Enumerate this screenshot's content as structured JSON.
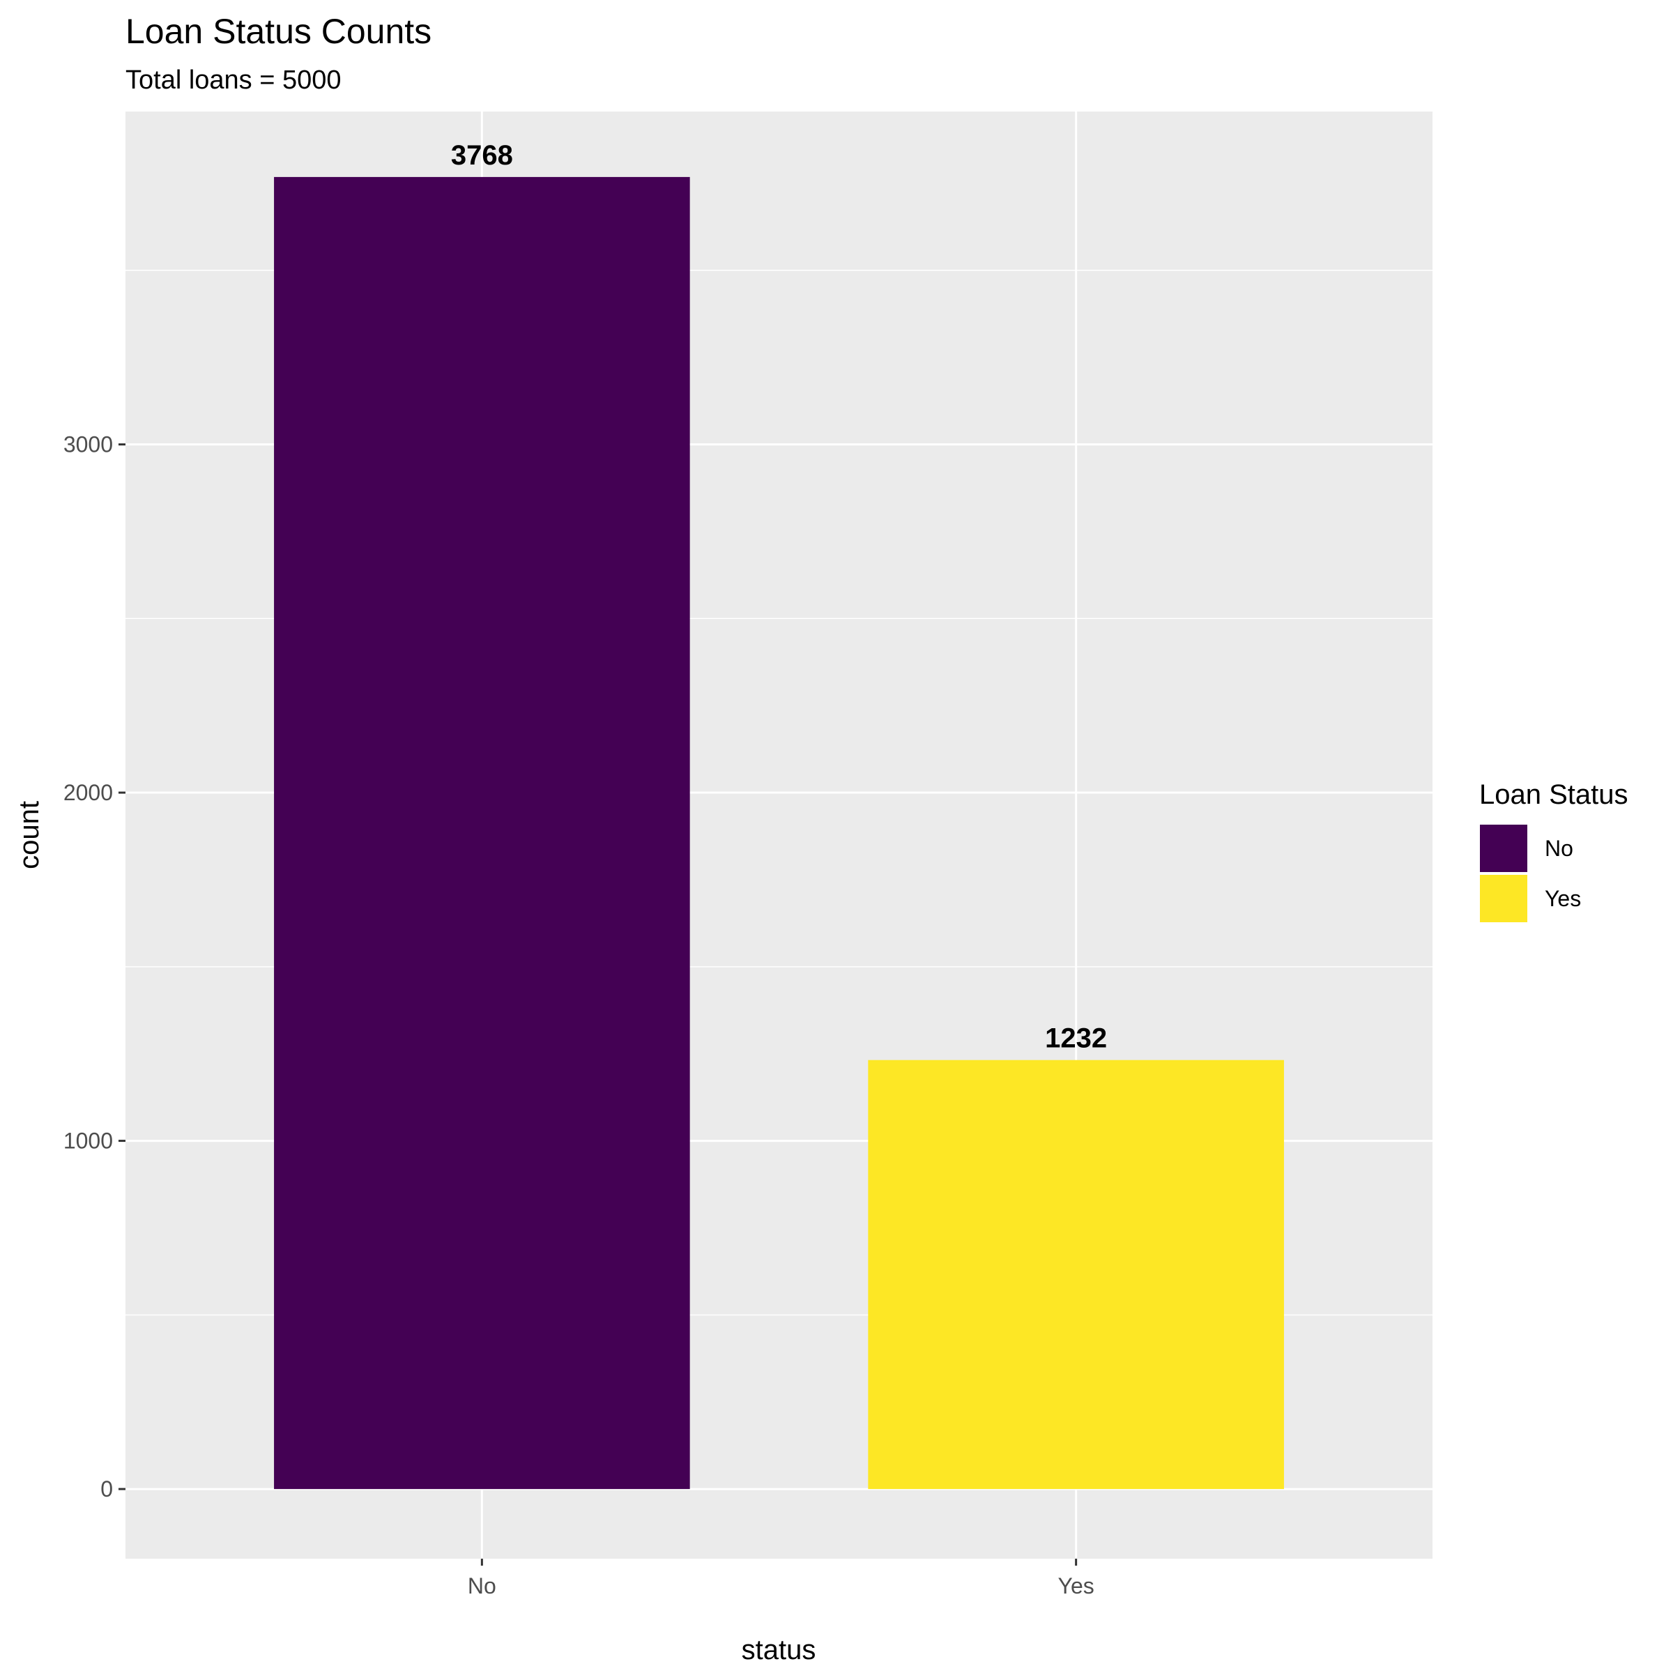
{
  "chart_data": {
    "type": "bar",
    "title": "Loan Status Counts",
    "subtitle": "Total loans = 5000",
    "xlabel": "status",
    "ylabel": "count",
    "categories": [
      "No",
      "Yes"
    ],
    "values": [
      3768,
      1232
    ],
    "data_labels": [
      "3768",
      "1232"
    ],
    "colors": [
      "#440154",
      "#FDE725"
    ],
    "ylim": [
      -200,
      3956
    ],
    "yticks": [
      0,
      1000,
      2000,
      3000
    ],
    "ytick_labels": [
      "0",
      "1000",
      "2000",
      "3000"
    ],
    "grid": true,
    "panel_background": "#EBEBEB",
    "legend": {
      "title": "Loan Status",
      "placement": "right",
      "entries": [
        "No",
        "Yes"
      ]
    }
  }
}
